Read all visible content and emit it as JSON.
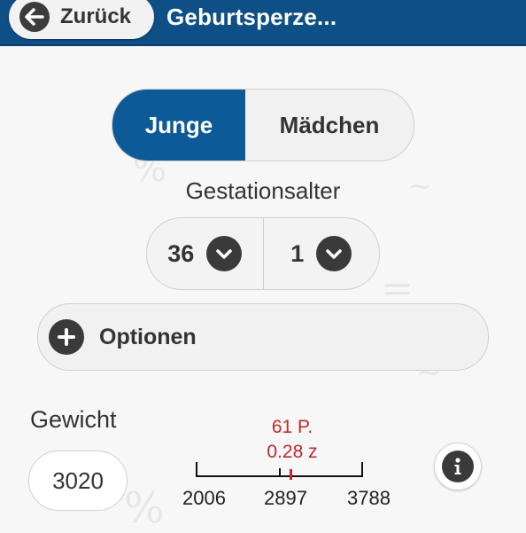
{
  "header": {
    "back_label": "Zurück",
    "title": "Geburtsperze...",
    "bar_color": "#0e4f86"
  },
  "sex_selector": {
    "options": [
      "Junge",
      "Mädchen"
    ],
    "selected": "Junge",
    "active_color": "#0d5a99"
  },
  "gestation": {
    "label": "Gestationsalter",
    "weeks": "36",
    "days": "1"
  },
  "options": {
    "label": "Optionen"
  },
  "weight": {
    "label": "Gewicht",
    "value": "3020"
  },
  "percentile": {
    "percentile_text": "61 P.",
    "z_text": "0.28 z",
    "scale_min": "2006",
    "scale_mid": "2897",
    "scale_max": "3788",
    "marker_value": 3020,
    "marker_color": "#c1272d"
  },
  "icons": [
    "arrow-left-icon",
    "chevron-down-icon",
    "plus-icon",
    "info-icon"
  ]
}
